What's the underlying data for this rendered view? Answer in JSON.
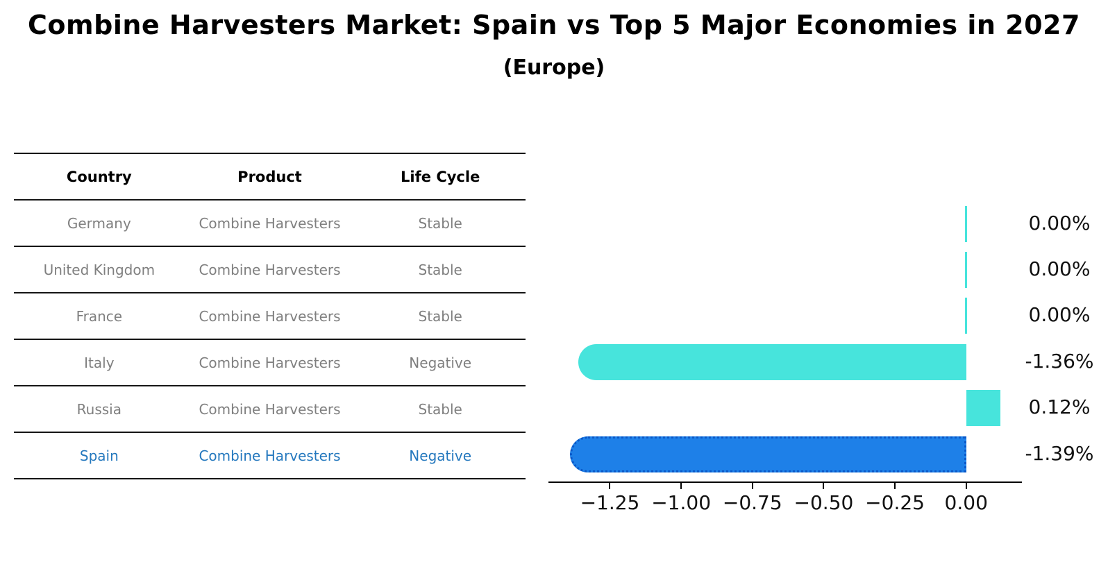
{
  "page": {
    "title": "Combine Harvesters Market: Spain vs Top 5 Major Economies in 2027",
    "subtitle": "(Europe)"
  },
  "table": {
    "headers": [
      "Country",
      "Product",
      "Life Cycle"
    ],
    "rows": [
      {
        "country": "Germany",
        "product": "Combine Harvesters",
        "life_cycle": "Stable",
        "highlighted": false
      },
      {
        "country": "United Kingdom",
        "product": "Combine Harvesters",
        "life_cycle": "Stable",
        "highlighted": false
      },
      {
        "country": "France",
        "product": "Combine Harvesters",
        "life_cycle": "Stable",
        "highlighted": false
      },
      {
        "country": "Italy",
        "product": "Combine Harvesters",
        "life_cycle": "Negative",
        "highlighted": false
      },
      {
        "country": "Russia",
        "product": "Combine Harvesters",
        "life_cycle": "Stable",
        "highlighted": false
      },
      {
        "country": "Spain",
        "product": "Combine Harvesters",
        "life_cycle": "Negative",
        "highlighted": true
      }
    ]
  },
  "chart_data": {
    "type": "bar",
    "orientation": "horizontal",
    "title": "Combine Harvesters Market: Spain vs Top 5 Major Economies in 2027 (Europe)",
    "categories": [
      "Germany",
      "United Kingdom",
      "France",
      "Italy",
      "Russia",
      "Spain"
    ],
    "values": [
      0.0,
      0.0,
      0.0,
      -1.36,
      0.12,
      -1.39
    ],
    "value_labels": [
      "0.00%",
      "0.00%",
      "0.00%",
      "-1.36%",
      "0.12%",
      "-1.39%"
    ],
    "xlim": [
      -1.4655,
      0.1955
    ],
    "xticks": [
      -1.25,
      -1.0,
      -0.75,
      -0.5,
      -0.25,
      0.0
    ],
    "xtick_labels": [
      "−1.25",
      "−1.00",
      "−0.75",
      "−0.50",
      "−0.25",
      "0.00"
    ],
    "grid": false,
    "legend": false,
    "highlight_index": 5,
    "colors": {
      "default_bar": "#47e4dc",
      "highlight_bar": "#1e80e8",
      "highlight_edge": "#0a58c8",
      "highlight_text": "#2478be",
      "axis": "#000000",
      "table_text": "#7f7f7f"
    }
  }
}
